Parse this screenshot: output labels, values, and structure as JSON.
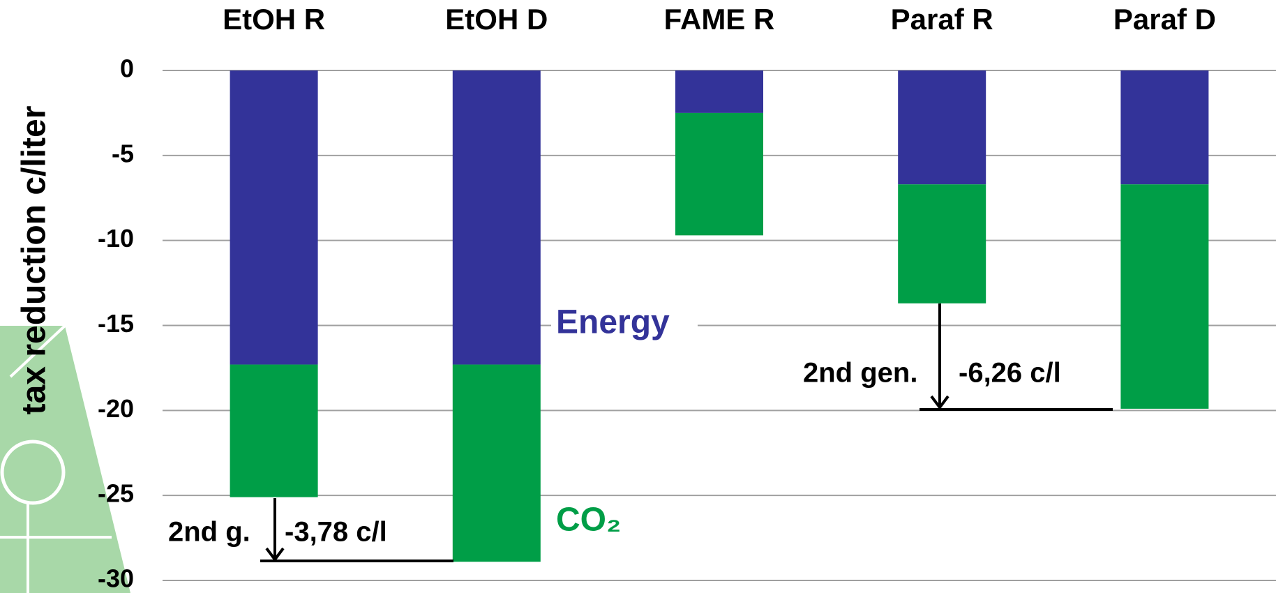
{
  "chart_data": {
    "type": "stacked-bar",
    "ylabel": "tax reduction c/liter",
    "categories": [
      "EtOH R",
      "EtOH D",
      "FAME R",
      "Paraf R",
      "Paraf D"
    ],
    "series": [
      {
        "name": "Energy",
        "color": "#333399",
        "values": [
          -17.3,
          -17.3,
          -2.5,
          -6.7,
          -6.7
        ]
      },
      {
        "name": "CO₂",
        "color": "#009e47",
        "values": [
          -7.8,
          -11.6,
          -7.2,
          -7.0,
          -13.2
        ]
      }
    ],
    "ylim": [
      -30,
      0
    ],
    "yticks": [
      0,
      -5,
      -10,
      -15,
      -20,
      -25,
      -30
    ],
    "grid": true,
    "annotations": [
      "2nd g.",
      "-3,78 c/l",
      "2nd gen.",
      "-6,26 c/l"
    ]
  }
}
